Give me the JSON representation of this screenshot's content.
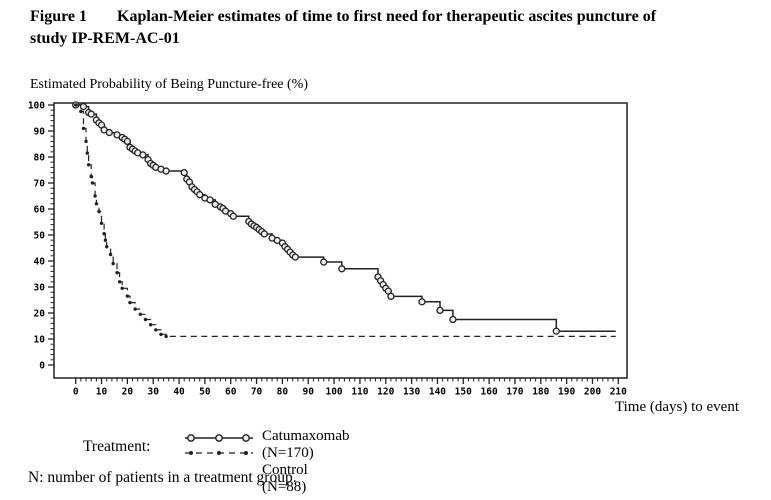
{
  "figure": {
    "label": "Figure 1",
    "title_line1": "Kaplan-Meier estimates of time to first need for therapeutic ascites puncture of",
    "title_line2": "study IP-REM-AC-01"
  },
  "footnote": "N: number of patients in a treatment group.",
  "legend": {
    "label": "Treatment:",
    "entries": [
      {
        "name": "Catumaxomab (N=170)"
      },
      {
        "name": "Control (N=88)"
      }
    ]
  },
  "colors": {
    "curve": "#222222",
    "marker_fill": "#eeeeee",
    "text": "#000000",
    "background": "#ffffff"
  },
  "chart_data": {
    "type": "line",
    "subtype": "kaplan-meier-step",
    "title": "Kaplan-Meier estimates of time to first need for therapeutic ascites puncture of study IP-REM-AC-01",
    "ylabel": "Estimated Probability of Being Puncture-free (%)",
    "xlabel": "Time (days) to event",
    "xlim": [
      0,
      210
    ],
    "ylim": [
      0,
      100
    ],
    "x_ticks": [
      0,
      10,
      20,
      30,
      40,
      50,
      60,
      70,
      80,
      90,
      100,
      110,
      120,
      130,
      140,
      150,
      160,
      170,
      180,
      190,
      200,
      210
    ],
    "y_ticks": [
      0,
      10,
      20,
      30,
      40,
      50,
      60,
      70,
      80,
      90,
      100
    ],
    "minor_tick_step": 2,
    "grid": false,
    "legend_position": "below",
    "series": [
      {
        "name": "Catumaxomab (N=170)",
        "line": "solid",
        "marker": "open-circle",
        "points": [
          [
            0,
            100
          ],
          [
            3,
            99.4
          ],
          [
            5,
            97.1
          ],
          [
            6,
            96.5
          ],
          [
            8,
            94.2
          ],
          [
            9,
            93.1
          ],
          [
            10,
            92.3
          ],
          [
            11,
            90.4
          ],
          [
            13,
            89.4
          ],
          [
            16,
            88.5
          ],
          [
            18,
            87.5
          ],
          [
            19,
            86.8
          ],
          [
            20,
            86
          ],
          [
            21,
            83.7
          ],
          [
            22,
            83
          ],
          [
            23,
            82.3
          ],
          [
            24,
            81.6
          ],
          [
            26,
            80.8
          ],
          [
            28,
            79
          ],
          [
            29,
            77.5
          ],
          [
            30,
            76.8
          ],
          [
            31,
            76
          ],
          [
            33,
            75.3
          ],
          [
            35,
            74.6
          ],
          [
            42,
            74
          ],
          [
            43,
            71.5
          ],
          [
            44,
            70.4
          ],
          [
            45,
            68.5
          ],
          [
            46,
            67.5
          ],
          [
            47,
            66.6
          ],
          [
            48,
            65.5
          ],
          [
            50,
            64.2
          ],
          [
            52,
            63.5
          ],
          [
            54,
            61.8
          ],
          [
            56,
            60.8
          ],
          [
            57,
            60.2
          ],
          [
            58,
            59.2
          ],
          [
            60,
            58.2
          ],
          [
            61,
            57.2
          ],
          [
            67,
            55.2
          ],
          [
            68,
            54.2
          ],
          [
            69,
            53.5
          ],
          [
            70,
            52.9
          ],
          [
            71,
            52.1
          ],
          [
            72,
            51.3
          ],
          [
            73,
            50.4
          ],
          [
            76,
            48.8
          ],
          [
            78,
            47.9
          ],
          [
            80,
            46.9
          ],
          [
            81,
            45.5
          ],
          [
            82,
            44.5
          ],
          [
            83,
            43.4
          ],
          [
            84,
            42.3
          ],
          [
            85,
            41.5
          ],
          [
            96,
            39.6
          ],
          [
            103,
            37
          ],
          [
            117,
            33.9
          ],
          [
            118,
            32.4
          ],
          [
            119,
            30.9
          ],
          [
            120,
            29.5
          ],
          [
            121,
            28.4
          ],
          [
            122,
            26.4
          ],
          [
            134,
            24.3
          ],
          [
            141,
            21
          ],
          [
            146,
            17.5
          ],
          [
            186,
            13
          ],
          [
            209,
            13
          ]
        ]
      },
      {
        "name": "Control (N=88)",
        "line": "dashed",
        "marker": "dot",
        "points": [
          [
            0,
            100
          ],
          [
            2,
            97.5
          ],
          [
            3,
            91
          ],
          [
            4,
            86
          ],
          [
            4.5,
            81.5
          ],
          [
            5,
            77
          ],
          [
            6,
            72.5
          ],
          [
            6.5,
            70
          ],
          [
            7.5,
            65
          ],
          [
            8,
            62
          ],
          [
            9,
            59
          ],
          [
            10,
            54.5
          ],
          [
            11,
            50.5
          ],
          [
            11.5,
            48
          ],
          [
            12,
            45.5
          ],
          [
            13.5,
            42.5
          ],
          [
            14.5,
            39
          ],
          [
            16,
            35.5
          ],
          [
            17,
            32
          ],
          [
            18,
            29.5
          ],
          [
            20,
            26.5
          ],
          [
            21,
            24
          ],
          [
            23,
            21.5
          ],
          [
            25,
            19.5
          ],
          [
            27,
            17.5
          ],
          [
            29,
            15.5
          ],
          [
            31,
            13.5
          ],
          [
            33,
            11.8
          ],
          [
            35,
            11
          ],
          [
            209,
            11
          ]
        ]
      }
    ]
  }
}
